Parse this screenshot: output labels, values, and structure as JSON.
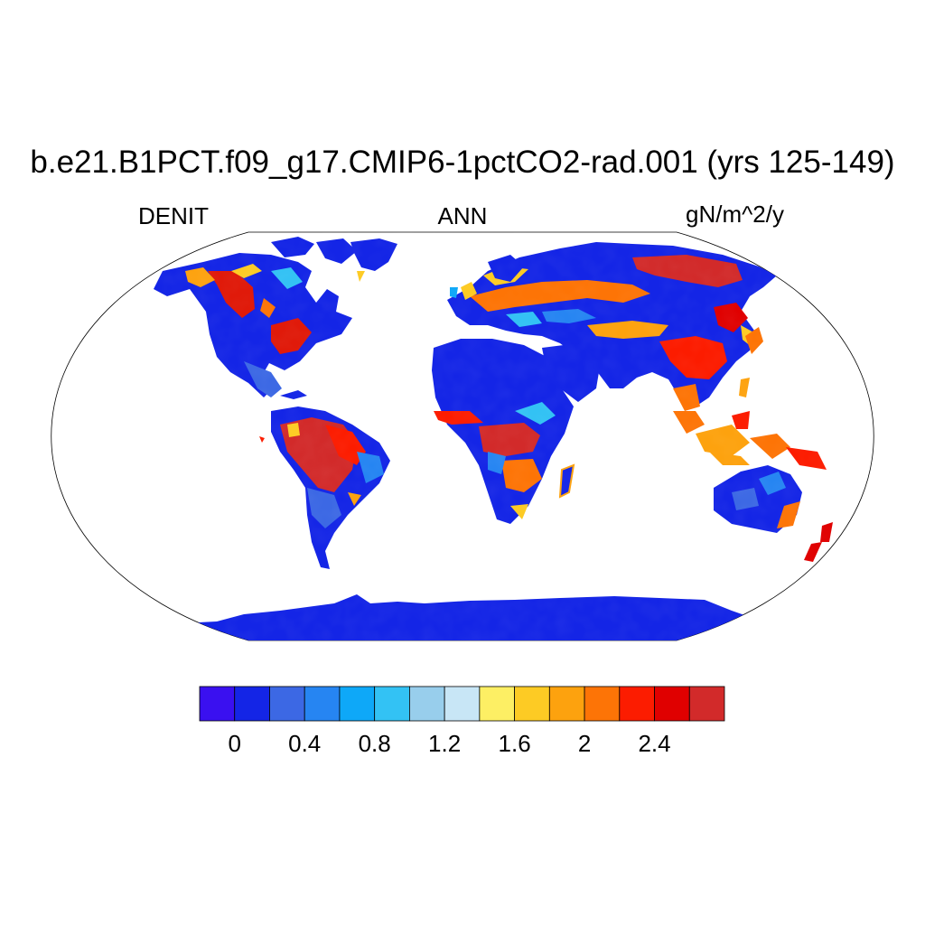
{
  "title": "b.e21.B1PCT.f09_g17.CMIP6-1pctCO2-rad.001 (yrs 125-149)",
  "subtitle_left": "DENIT",
  "subtitle_center": "ANN",
  "subtitle_right": "gN/m^2/y",
  "colorbar": {
    "colors": [
      "#3a10f0",
      "#1425e6",
      "#3c68e4",
      "#2685f2",
      "#0ea8f8",
      "#33c2f4",
      "#98ceec",
      "#c8e6f6",
      "#fdef64",
      "#fdcb24",
      "#fda20e",
      "#fd7406",
      "#fc1c00",
      "#e00000",
      "#d22a2a"
    ],
    "levels": [
      0,
      0.2,
      0.4,
      0.6,
      0.8,
      1.0,
      1.2,
      1.4,
      1.6,
      1.8,
      2.0,
      2.2,
      2.4,
      2.6
    ],
    "tick_labels": [
      {
        "value": 0,
        "label": "0"
      },
      {
        "value": 0.4,
        "label": "0.4"
      },
      {
        "value": 0.8,
        "label": "0.8"
      },
      {
        "value": 1.2,
        "label": "1.2"
      },
      {
        "value": 1.6,
        "label": "1.6"
      },
      {
        "value": 2.0,
        "label": "2"
      },
      {
        "value": 2.4,
        "label": "2.4"
      }
    ]
  }
}
